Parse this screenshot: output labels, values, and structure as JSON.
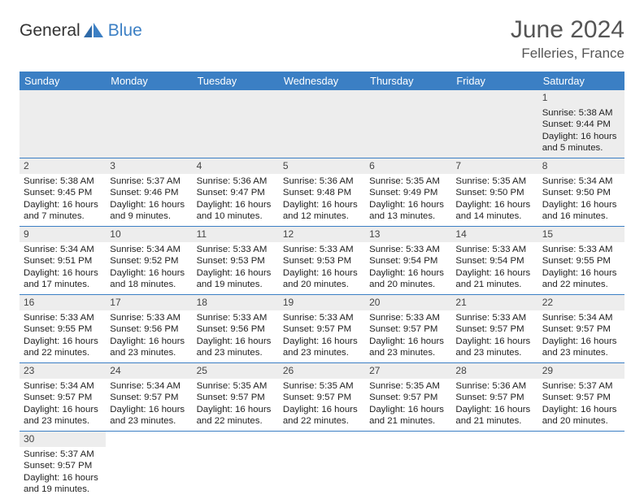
{
  "logo": {
    "text1": "General",
    "text2": "Blue"
  },
  "title": "June 2024",
  "location": "Felleries, France",
  "colors": {
    "headerBg": "#3b7fc4",
    "headerText": "#ffffff",
    "dayStrip": "#ededed",
    "border": "#3b7fc4",
    "bodyText": "#222222",
    "logoBlue": "#3b7fc4",
    "titleGray": "#555555"
  },
  "weekdays": [
    "Sunday",
    "Monday",
    "Tuesday",
    "Wednesday",
    "Thursday",
    "Friday",
    "Saturday"
  ],
  "weeks": [
    [
      null,
      null,
      null,
      null,
      null,
      null,
      {
        "n": "1",
        "sr": "5:38 AM",
        "ss": "9:44 PM",
        "dl": "16 hours and 5 minutes."
      }
    ],
    [
      {
        "n": "2",
        "sr": "5:38 AM",
        "ss": "9:45 PM",
        "dl": "16 hours and 7 minutes."
      },
      {
        "n": "3",
        "sr": "5:37 AM",
        "ss": "9:46 PM",
        "dl": "16 hours and 9 minutes."
      },
      {
        "n": "4",
        "sr": "5:36 AM",
        "ss": "9:47 PM",
        "dl": "16 hours and 10 minutes."
      },
      {
        "n": "5",
        "sr": "5:36 AM",
        "ss": "9:48 PM",
        "dl": "16 hours and 12 minutes."
      },
      {
        "n": "6",
        "sr": "5:35 AM",
        "ss": "9:49 PM",
        "dl": "16 hours and 13 minutes."
      },
      {
        "n": "7",
        "sr": "5:35 AM",
        "ss": "9:50 PM",
        "dl": "16 hours and 14 minutes."
      },
      {
        "n": "8",
        "sr": "5:34 AM",
        "ss": "9:50 PM",
        "dl": "16 hours and 16 minutes."
      }
    ],
    [
      {
        "n": "9",
        "sr": "5:34 AM",
        "ss": "9:51 PM",
        "dl": "16 hours and 17 minutes."
      },
      {
        "n": "10",
        "sr": "5:34 AM",
        "ss": "9:52 PM",
        "dl": "16 hours and 18 minutes."
      },
      {
        "n": "11",
        "sr": "5:33 AM",
        "ss": "9:53 PM",
        "dl": "16 hours and 19 minutes."
      },
      {
        "n": "12",
        "sr": "5:33 AM",
        "ss": "9:53 PM",
        "dl": "16 hours and 20 minutes."
      },
      {
        "n": "13",
        "sr": "5:33 AM",
        "ss": "9:54 PM",
        "dl": "16 hours and 20 minutes."
      },
      {
        "n": "14",
        "sr": "5:33 AM",
        "ss": "9:54 PM",
        "dl": "16 hours and 21 minutes."
      },
      {
        "n": "15",
        "sr": "5:33 AM",
        "ss": "9:55 PM",
        "dl": "16 hours and 22 minutes."
      }
    ],
    [
      {
        "n": "16",
        "sr": "5:33 AM",
        "ss": "9:55 PM",
        "dl": "16 hours and 22 minutes."
      },
      {
        "n": "17",
        "sr": "5:33 AM",
        "ss": "9:56 PM",
        "dl": "16 hours and 23 minutes."
      },
      {
        "n": "18",
        "sr": "5:33 AM",
        "ss": "9:56 PM",
        "dl": "16 hours and 23 minutes."
      },
      {
        "n": "19",
        "sr": "5:33 AM",
        "ss": "9:57 PM",
        "dl": "16 hours and 23 minutes."
      },
      {
        "n": "20",
        "sr": "5:33 AM",
        "ss": "9:57 PM",
        "dl": "16 hours and 23 minutes."
      },
      {
        "n": "21",
        "sr": "5:33 AM",
        "ss": "9:57 PM",
        "dl": "16 hours and 23 minutes."
      },
      {
        "n": "22",
        "sr": "5:34 AM",
        "ss": "9:57 PM",
        "dl": "16 hours and 23 minutes."
      }
    ],
    [
      {
        "n": "23",
        "sr": "5:34 AM",
        "ss": "9:57 PM",
        "dl": "16 hours and 23 minutes."
      },
      {
        "n": "24",
        "sr": "5:34 AM",
        "ss": "9:57 PM",
        "dl": "16 hours and 23 minutes."
      },
      {
        "n": "25",
        "sr": "5:35 AM",
        "ss": "9:57 PM",
        "dl": "16 hours and 22 minutes."
      },
      {
        "n": "26",
        "sr": "5:35 AM",
        "ss": "9:57 PM",
        "dl": "16 hours and 22 minutes."
      },
      {
        "n": "27",
        "sr": "5:35 AM",
        "ss": "9:57 PM",
        "dl": "16 hours and 21 minutes."
      },
      {
        "n": "28",
        "sr": "5:36 AM",
        "ss": "9:57 PM",
        "dl": "16 hours and 21 minutes."
      },
      {
        "n": "29",
        "sr": "5:37 AM",
        "ss": "9:57 PM",
        "dl": "16 hours and 20 minutes."
      }
    ],
    [
      {
        "n": "30",
        "sr": "5:37 AM",
        "ss": "9:57 PM",
        "dl": "16 hours and 19 minutes."
      },
      null,
      null,
      null,
      null,
      null,
      null
    ]
  ],
  "labels": {
    "sunrise": "Sunrise:",
    "sunset": "Sunset:",
    "daylight": "Daylight:"
  }
}
